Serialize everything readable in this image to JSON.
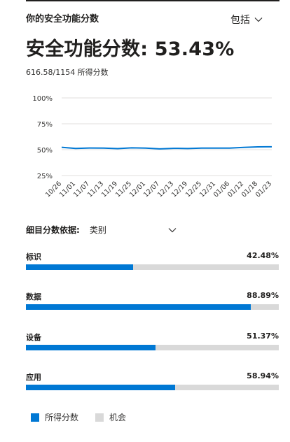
{
  "header": {
    "label": "你的安全功能分数",
    "include_label": "包括"
  },
  "score": {
    "title": "安全功能分数: 53.43%",
    "sub": "616.58/1154 所得分数"
  },
  "chart_data": {
    "type": "line",
    "x": [
      "10/26",
      "11/01",
      "11/07",
      "11/13",
      "11/19",
      "11/25",
      "12/01",
      "12/07",
      "12/13",
      "12/19",
      "12/25",
      "12/31",
      "01/06",
      "01/12",
      "01/18",
      "01/23"
    ],
    "yticks": [
      "100%",
      "75%",
      "50%",
      "25%"
    ],
    "ylim": [
      25,
      100
    ],
    "grid": true,
    "series": [
      {
        "values": [
          52.3,
          51.2,
          51.6,
          51.5,
          51.0,
          51.8,
          51.5,
          50.8,
          51.3,
          51.1,
          51.5,
          51.5,
          51.5,
          52.2,
          52.7,
          52.8
        ]
      }
    ],
    "color": "#0078d4"
  },
  "breakdown": {
    "label": "细目分数依据:",
    "value": "类别"
  },
  "categories": [
    {
      "label": "标识",
      "value": "42.48%",
      "fraction": 0.4248
    },
    {
      "label": "数据",
      "value": "88.89%",
      "fraction": 0.8889
    },
    {
      "label": "设备",
      "value": "51.37%",
      "fraction": 0.5137
    },
    {
      "label": "应用",
      "value": "58.94%",
      "fraction": 0.5894
    }
  ],
  "legend": [
    {
      "label": "所得分数",
      "color": "#0078d4"
    },
    {
      "label": "机会",
      "color": "#d9d9d9"
    }
  ]
}
